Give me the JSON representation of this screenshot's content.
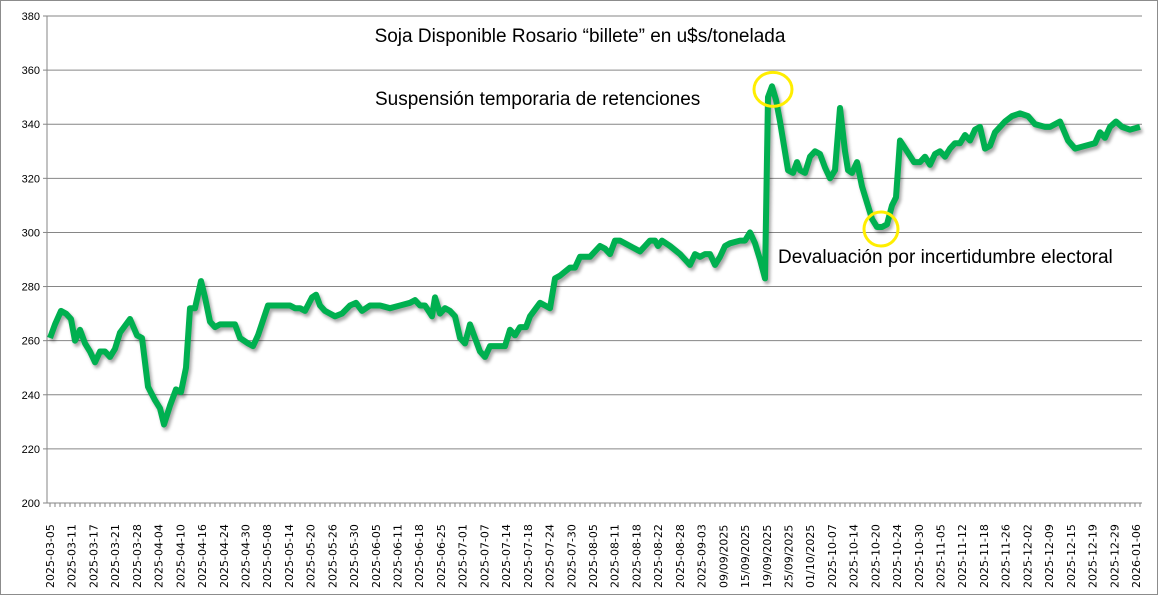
{
  "chart_data": {
    "type": "line",
    "title": "Soja Disponible Rosario “billete” en u$s/tonelada",
    "xlabel": "",
    "ylabel": "",
    "ylim": [
      200,
      380
    ],
    "yticks": [
      200,
      220,
      240,
      260,
      280,
      300,
      320,
      340,
      360,
      380
    ],
    "grid": true,
    "legend": "none",
    "x_tick_labels": [
      "2025-03-05",
      "2025-03-11",
      "2025-03-17",
      "2025-03-21",
      "2025-03-28",
      "2025-04-04",
      "2025-04-10",
      "2025-04-16",
      "2025-04-24",
      "2025-04-30",
      "2025-05-08",
      "2025-05-14",
      "2025-05-20",
      "2025-05-26",
      "2025-05-30",
      "2025-06-05",
      "2025-06-11",
      "2025-06-18",
      "2025-06-25",
      "2025-07-01",
      "2025-07-07",
      "2025-07-14",
      "2025-07-18",
      "2025-07-24",
      "2025-07-30",
      "2025-08-05",
      "2025-08-11",
      "2025-08-18",
      "2025-08-22",
      "2025-08-28",
      "2025-09-03",
      "09/09/2025",
      "15/09/2025",
      "19/09/2025",
      "25/09/2025",
      "01/10/2025",
      "2025-10-07",
      "2025-10-14",
      "2025-10-20",
      "2025-10-24",
      "2025-10-30",
      "2025-11-05",
      "2025-11-12",
      "2025-11-18",
      "2025-11-26",
      "2025-12-02",
      "2025-12-09",
      "2025-12-15",
      "2025-12-19",
      "2025-12-29",
      "2026-01-06"
    ],
    "x_unit": "trading-day index (approx. 4 per tick label)",
    "x_range": [
      0,
      218
    ],
    "series": [
      {
        "name": "Soja Disponible Rosario",
        "color": "#00b050",
        "points": [
          [
            0,
            261
          ],
          [
            1,
            266
          ],
          [
            2.2,
            271
          ],
          [
            3.2,
            270
          ],
          [
            4.2,
            268
          ],
          [
            5,
            260
          ],
          [
            6,
            264
          ],
          [
            7,
            259
          ],
          [
            8,
            256
          ],
          [
            9,
            252
          ],
          [
            10,
            256
          ],
          [
            11,
            256
          ],
          [
            12,
            254
          ],
          [
            13,
            257
          ],
          [
            14,
            263
          ],
          [
            16,
            268
          ],
          [
            17.4,
            262
          ],
          [
            18.4,
            261
          ],
          [
            19.6,
            243
          ],
          [
            21,
            238
          ],
          [
            22,
            235
          ],
          [
            22.8,
            229
          ],
          [
            24,
            236
          ],
          [
            25.2,
            242
          ],
          [
            26.2,
            241
          ],
          [
            27.2,
            250
          ],
          [
            28,
            272
          ],
          [
            29,
            272
          ],
          [
            30.2,
            282
          ],
          [
            31,
            276
          ],
          [
            32,
            267
          ],
          [
            33,
            265
          ],
          [
            34,
            266
          ],
          [
            35.6,
            266
          ],
          [
            37,
            266
          ],
          [
            38,
            261
          ],
          [
            39.6,
            259
          ],
          [
            40.6,
            258
          ],
          [
            41.6,
            262
          ],
          [
            43.6,
            273
          ],
          [
            45,
            273
          ],
          [
            47,
            273
          ],
          [
            48,
            273
          ],
          [
            49,
            272
          ],
          [
            50,
            272
          ],
          [
            51,
            271
          ],
          [
            52.4,
            276
          ],
          [
            53.2,
            277
          ],
          [
            54,
            273
          ],
          [
            55,
            271
          ],
          [
            57,
            269
          ],
          [
            58.4,
            270
          ],
          [
            60,
            273
          ],
          [
            61.2,
            274
          ],
          [
            62.4,
            271
          ],
          [
            64,
            273
          ],
          [
            66,
            273
          ],
          [
            68,
            272
          ],
          [
            70,
            273
          ],
          [
            72,
            274
          ],
          [
            73,
            275
          ],
          [
            74,
            273
          ],
          [
            75,
            273
          ],
          [
            76.4,
            269
          ],
          [
            77,
            276
          ],
          [
            78,
            270
          ],
          [
            79,
            272
          ],
          [
            80,
            271
          ],
          [
            81,
            269
          ],
          [
            82,
            261
          ],
          [
            83,
            259
          ],
          [
            84,
            266
          ],
          [
            85,
            261
          ],
          [
            86,
            256
          ],
          [
            87,
            254
          ],
          [
            88,
            258
          ],
          [
            89.6,
            258
          ],
          [
            91,
            258
          ],
          [
            92,
            264
          ],
          [
            93,
            262
          ],
          [
            94,
            265
          ],
          [
            95.2,
            265
          ],
          [
            96,
            269
          ],
          [
            98,
            274
          ],
          [
            99,
            273
          ],
          [
            100,
            272
          ],
          [
            101,
            283
          ],
          [
            102,
            284
          ],
          [
            104,
            287
          ],
          [
            105,
            287
          ],
          [
            106,
            291
          ],
          [
            108,
            291
          ],
          [
            110,
            295
          ],
          [
            111,
            294
          ],
          [
            112,
            292
          ],
          [
            113,
            297
          ],
          [
            114,
            297
          ],
          [
            116,
            295
          ],
          [
            118,
            293
          ],
          [
            119,
            295
          ],
          [
            120,
            297
          ],
          [
            121,
            297
          ],
          [
            121.6,
            295
          ],
          [
            122.4,
            297
          ],
          [
            124,
            295
          ],
          [
            126,
            292
          ],
          [
            127,
            290
          ],
          [
            128,
            288
          ],
          [
            129,
            292
          ],
          [
            130,
            291
          ],
          [
            131,
            292
          ],
          [
            132,
            292
          ],
          [
            133,
            288
          ],
          [
            134,
            291
          ],
          [
            135,
            295
          ],
          [
            136,
            296
          ],
          [
            138,
            297
          ],
          [
            139,
            297
          ],
          [
            140,
            300
          ],
          [
            141,
            296
          ],
          [
            142,
            290
          ],
          [
            143,
            283
          ],
          [
            143.6,
            350
          ],
          [
            144.4,
            354
          ],
          [
            145.2,
            349
          ],
          [
            146,
            341
          ],
          [
            147.6,
            323
          ],
          [
            148.6,
            322
          ],
          [
            149.4,
            326
          ],
          [
            150,
            323
          ],
          [
            151,
            322
          ],
          [
            152,
            328
          ],
          [
            153,
            330
          ],
          [
            154,
            329
          ],
          [
            155,
            324
          ],
          [
            156,
            320
          ],
          [
            157,
            323
          ],
          [
            158,
            346
          ],
          [
            159,
            330
          ],
          [
            159.6,
            323
          ],
          [
            160.4,
            322
          ],
          [
            161.4,
            326
          ],
          [
            162.4,
            317
          ],
          [
            163.4,
            311
          ],
          [
            164.4,
            305
          ],
          [
            165.4,
            302
          ],
          [
            166.4,
            302
          ],
          [
            167.4,
            303
          ],
          [
            168.4,
            310
          ],
          [
            169.2,
            313
          ],
          [
            170,
            334
          ],
          [
            171.4,
            330
          ],
          [
            172.8,
            326
          ],
          [
            174,
            326
          ],
          [
            175,
            328
          ],
          [
            176,
            325
          ],
          [
            177,
            329
          ],
          [
            178,
            330
          ],
          [
            179,
            328
          ],
          [
            180,
            331
          ],
          [
            181,
            333
          ],
          [
            182,
            333
          ],
          [
            183,
            336
          ],
          [
            184,
            334
          ],
          [
            185,
            338
          ],
          [
            186,
            339
          ],
          [
            187,
            331
          ],
          [
            188,
            332
          ],
          [
            189,
            337
          ],
          [
            191,
            341
          ],
          [
            192.4,
            343
          ],
          [
            194,
            344
          ],
          [
            195.6,
            343
          ],
          [
            197,
            340
          ],
          [
            199,
            339
          ],
          [
            200,
            339
          ],
          [
            202,
            341
          ],
          [
            203.6,
            334
          ],
          [
            205,
            331
          ],
          [
            207,
            332
          ],
          [
            209,
            333
          ],
          [
            210,
            337
          ],
          [
            211,
            335
          ],
          [
            212,
            339
          ],
          [
            213.2,
            341
          ],
          [
            214.4,
            339
          ],
          [
            216,
            338
          ],
          [
            218,
            339
          ]
        ]
      }
    ],
    "annotations": [
      {
        "text": "Suspensión temporaria de retenciones",
        "x": 144.4,
        "y": 354,
        "marker": "yellow-circle"
      },
      {
        "text": "Devaluación por incertidumbre electoral",
        "x": 166,
        "y": 302,
        "marker": "yellow-circle"
      }
    ],
    "marker_color": "#ffee00"
  }
}
